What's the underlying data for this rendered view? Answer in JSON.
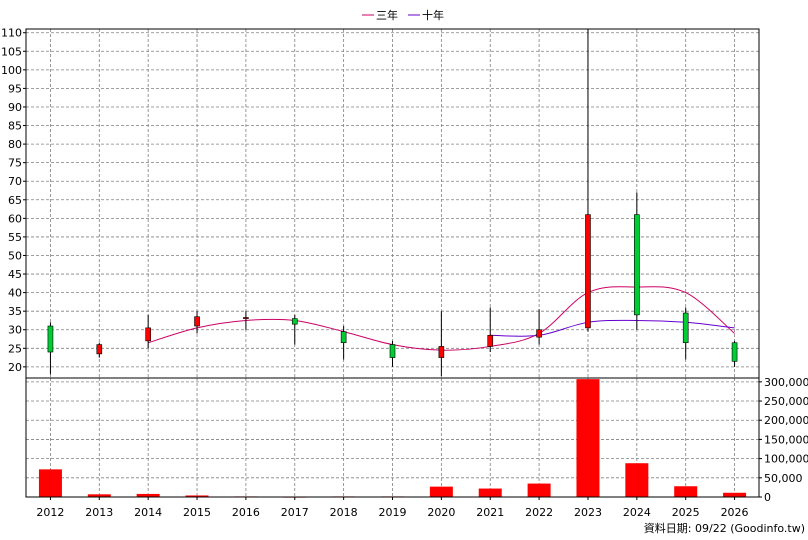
{
  "legend": {
    "items": [
      {
        "label": "三年",
        "color": "#cc0066"
      },
      {
        "label": "十年",
        "color": "#6600cc"
      }
    ]
  },
  "footer": {
    "text": "資料日期: 09/22  (Goodinfo.tw)"
  },
  "colors": {
    "up": "#ff0000",
    "down": "#00cc33",
    "volume": "#ff0000",
    "grid": "#808080"
  },
  "chart_data": [
    {
      "type": "candlestick",
      "title": "",
      "categories": [
        "2012",
        "2013",
        "2014",
        "2015",
        "2016",
        "2017",
        "2018",
        "2019",
        "2020",
        "2021",
        "2022",
        "2023",
        "2024",
        "2025",
        "2026"
      ],
      "ylim": [
        17,
        111
      ],
      "yticks": [
        20,
        25,
        30,
        35,
        40,
        45,
        50,
        55,
        60,
        65,
        70,
        75,
        80,
        85,
        90,
        95,
        100,
        105,
        110
      ],
      "grid": true,
      "legend_position": "top",
      "candles": [
        {
          "open": 24,
          "close": 31,
          "high": 32,
          "low": 18,
          "dir": "down"
        },
        {
          "open": 26,
          "close": 23.5,
          "high": 26.5,
          "low": 22.5,
          "dir": "up"
        },
        {
          "open": 30.5,
          "close": 27,
          "high": 34,
          "low": 25,
          "dir": "up"
        },
        {
          "open": 33.5,
          "close": 31,
          "high": 35,
          "low": 29,
          "dir": "up"
        },
        {
          "open": 33.3,
          "close": 33,
          "high": 35,
          "low": 30,
          "dir": "up"
        },
        {
          "open": 31.5,
          "close": 33,
          "high": 34,
          "low": 26,
          "dir": "down"
        },
        {
          "open": 26.5,
          "close": 29.5,
          "high": 31,
          "low": 22,
          "dir": "down"
        },
        {
          "open": 22.5,
          "close": 26,
          "high": 27,
          "low": 20,
          "dir": "down"
        },
        {
          "open": 25.5,
          "close": 22.5,
          "high": 35,
          "low": 17.5,
          "dir": "up"
        },
        {
          "open": 28.5,
          "close": 25.5,
          "high": 36,
          "low": 24,
          "dir": "up"
        },
        {
          "open": 30,
          "close": 28,
          "high": 35.5,
          "low": 26,
          "dir": "up"
        },
        {
          "open": 61,
          "close": 30.5,
          "high": 111,
          "low": 29.5,
          "dir": "up"
        },
        {
          "open": 34,
          "close": 61,
          "high": 67,
          "low": 30,
          "dir": "down"
        },
        {
          "open": 26.5,
          "close": 34.5,
          "high": 36,
          "low": 22,
          "dir": "down"
        },
        {
          "open": 21.5,
          "close": 26.5,
          "high": 27,
          "low": 20,
          "dir": "down"
        }
      ],
      "series": [
        {
          "name": "三年",
          "values": [
            null,
            null,
            26.5,
            30.5,
            32.5,
            32.5,
            29.5,
            26,
            24.5,
            25.5,
            29,
            40,
            41.5,
            40,
            29
          ]
        },
        {
          "name": "十年",
          "values": [
            null,
            null,
            null,
            null,
            null,
            null,
            null,
            null,
            null,
            28.5,
            28.5,
            32,
            32.5,
            32,
            30.5
          ]
        }
      ]
    },
    {
      "type": "bar",
      "categories": [
        "2012",
        "2013",
        "2014",
        "2015",
        "2016",
        "2017",
        "2018",
        "2019",
        "2020",
        "2021",
        "2022",
        "2023",
        "2024",
        "2025",
        "2026"
      ],
      "values": [
        72000,
        7000,
        8000,
        4000,
        1500,
        1000,
        1500,
        1500,
        27000,
        22000,
        35000,
        307000,
        88000,
        28000,
        11000
      ],
      "ylim": [
        0,
        310000
      ],
      "yticks": [
        0,
        50000,
        100000,
        150000,
        200000,
        250000,
        300000
      ],
      "ytick_labels": [
        "0",
        "50,000",
        "100,000",
        "150,000",
        "200,000",
        "250,000",
        "300,000"
      ],
      "grid": true
    }
  ]
}
